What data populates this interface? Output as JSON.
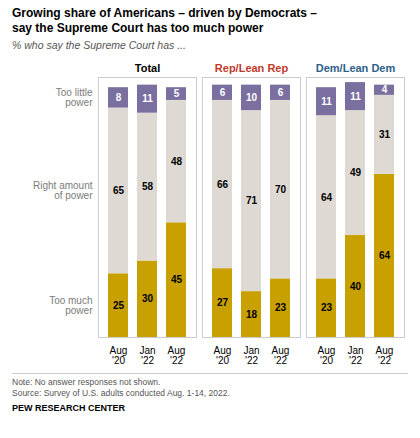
{
  "chart_data": {
    "type": "bar",
    "stacked": true,
    "data_labels": true,
    "tick_labels": "x",
    "title": "Growing share of Americans – driven by Democrats –\nsay the Supreme Court has too much power",
    "subtitle": "% who say the Supreme Court has ...",
    "groups": [
      "Total",
      "Rep/Lean Rep",
      "Dem/Lean Dem"
    ],
    "group_colors": [
      "#000000",
      "#c0392b",
      "#2c5f8a"
    ],
    "categories": [
      "Aug\n'20",
      "Jan\n'22",
      "Aug\n'22"
    ],
    "series": [
      {
        "name": "Too much\npower",
        "color": "#c8a000",
        "values": [
          [
            25,
            30,
            45
          ],
          [
            27,
            18,
            23
          ],
          [
            23,
            40,
            64
          ]
        ]
      },
      {
        "name": "Right amount\nof power",
        "color": "#dedad3",
        "values": [
          [
            65,
            58,
            48
          ],
          [
            66,
            71,
            70
          ],
          [
            64,
            49,
            31
          ]
        ]
      },
      {
        "name": "Too little\npower",
        "color": "#7b6fa0",
        "values": [
          [
            8,
            11,
            5
          ],
          [
            6,
            10,
            6
          ],
          [
            11,
            11,
            4
          ]
        ]
      }
    ],
    "label_color": "#7b7b7b",
    "ylim": [
      0,
      102
    ],
    "yticks": [],
    "notes": [
      "Note: No answer responses not shown.",
      "Source: Survey of U.S. adults conducted Aug. 1-14, 2022."
    ],
    "source": "PEW RESEARCH CENTER"
  }
}
